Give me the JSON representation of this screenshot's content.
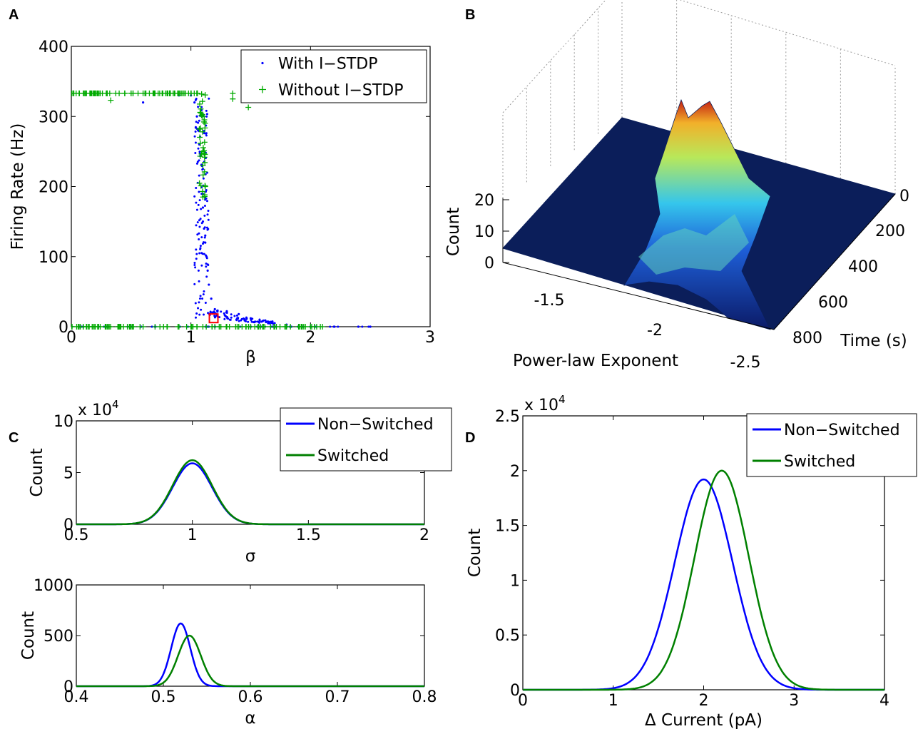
{
  "panels": {
    "A": "A",
    "B": "B",
    "C": "C",
    "D": "D"
  },
  "chart_data": [
    {
      "panel": "A",
      "type": "scatter",
      "xlabel": "β",
      "ylabel": "Firing Rate (Hz)",
      "xlim": [
        0,
        3
      ],
      "ylim": [
        0,
        400
      ],
      "xticks": [
        "0",
        "1",
        "2",
        "3"
      ],
      "yticks": [
        "0",
        "100",
        "200",
        "300",
        "400"
      ],
      "legend": {
        "position": "top-right",
        "entries": [
          "With I−STDP",
          "Without I−STDP"
        ]
      },
      "series": [
        {
          "name": "With I−STDP",
          "color": "#0000ff",
          "marker": "dot",
          "points": [
            [
              0.1,
              0
            ],
            [
              0.3,
              0
            ],
            [
              0.5,
              0
            ],
            [
              0.7,
              0
            ],
            [
              0.9,
              0
            ],
            [
              1.2,
              0
            ],
            [
              1.5,
              0
            ],
            [
              1.8,
              0
            ],
            [
              2.0,
              0
            ],
            [
              2.2,
              0
            ],
            [
              2.4,
              0
            ],
            [
              2.5,
              0
            ],
            [
              0.6,
              320
            ],
            [
              0.9,
              330
            ],
            [
              1.0,
              330
            ],
            [
              1.03,
              320
            ],
            [
              1.05,
              300
            ],
            [
              1.06,
              280
            ],
            [
              1.07,
              260
            ],
            [
              1.08,
              245
            ],
            [
              1.09,
              230
            ],
            [
              1.1,
              170
            ],
            [
              1.1,
              150
            ],
            [
              1.11,
              140
            ],
            [
              1.12,
              130
            ],
            [
              1.12,
              120
            ],
            [
              1.13,
              100
            ],
            [
              1.14,
              80
            ],
            [
              1.15,
              60
            ],
            [
              1.17,
              40
            ],
            [
              1.2,
              25
            ],
            [
              1.3,
              22
            ],
            [
              1.4,
              18
            ],
            [
              1.5,
              12
            ],
            [
              1.6,
              8
            ],
            [
              1.7,
              5
            ],
            [
              1.8,
              3
            ]
          ]
        },
        {
          "name": "Without I−STDP",
          "color": "#00aa00",
          "marker": "plus",
          "points": [
            [
              0.0,
              333
            ],
            [
              0.1,
              333
            ],
            [
              0.2,
              333
            ],
            [
              0.3,
              333
            ],
            [
              0.4,
              333
            ],
            [
              0.5,
              333
            ],
            [
              0.6,
              333
            ],
            [
              0.7,
              333
            ],
            [
              0.8,
              333
            ],
            [
              0.9,
              333
            ],
            [
              1.0,
              333
            ],
            [
              1.05,
              333
            ],
            [
              0.33,
              323
            ],
            [
              1.1,
              300
            ],
            [
              1.1,
              250
            ],
            [
              1.1,
              230
            ],
            [
              1.12,
              200
            ],
            [
              1.1,
              185
            ],
            [
              1.35,
              333
            ],
            [
              1.35,
              325
            ],
            [
              1.48,
              313
            ],
            [
              0.0,
              0
            ],
            [
              0.1,
              0
            ],
            [
              0.2,
              0
            ],
            [
              0.3,
              0
            ],
            [
              0.4,
              0
            ],
            [
              0.5,
              0
            ],
            [
              0.6,
              0
            ],
            [
              0.7,
              0
            ],
            [
              0.8,
              0
            ],
            [
              0.9,
              0
            ],
            [
              1.0,
              0
            ],
            [
              1.1,
              0
            ],
            [
              1.2,
              0
            ],
            [
              1.3,
              0
            ],
            [
              1.4,
              0
            ],
            [
              1.5,
              0
            ],
            [
              1.6,
              0
            ],
            [
              1.7,
              0
            ],
            [
              1.8,
              0
            ],
            [
              1.9,
              0
            ],
            [
              2.0,
              0
            ],
            [
              2.1,
              0
            ]
          ]
        }
      ],
      "annotation": "red-square-marker"
    },
    {
      "panel": "B",
      "type": "surface",
      "xlabel": "Power-law Exponent",
      "ylabel": "Time (s)",
      "zlabel": "Count",
      "xticks": [
        "-1.5",
        "-2",
        "-2.5"
      ],
      "yticks": [
        "0",
        "200",
        "400",
        "600",
        "800"
      ],
      "zticks": [
        "0",
        "10",
        "20"
      ],
      "peak": {
        "exponent": -1.9,
        "time": 0,
        "count": 25
      }
    },
    {
      "panel": "C-top",
      "type": "line",
      "xlabel": "σ",
      "ylabel": "Count",
      "multiplier": "x 10",
      "multiplier_exp": "4",
      "xlim": [
        0.5,
        2
      ],
      "ylim": [
        0,
        10
      ],
      "xticks": [
        "0.5",
        "1",
        "1.5",
        "2"
      ],
      "yticks": [
        "0",
        "5",
        "10"
      ],
      "legend": {
        "position": "top-right",
        "entries": [
          "Non−Switched",
          "Switched"
        ]
      },
      "series": [
        {
          "name": "Non−Switched",
          "color": "#0000ff",
          "mean": 1.0,
          "sd": 0.085,
          "peak": 5.9
        },
        {
          "name": "Switched",
          "color": "#008000",
          "mean": 1.0,
          "sd": 0.085,
          "peak": 6.2
        }
      ]
    },
    {
      "panel": "C-bottom",
      "type": "line",
      "xlabel": "α",
      "ylabel": "Count",
      "xlim": [
        0.4,
        0.8
      ],
      "ylim": [
        0,
        1000
      ],
      "xticks": [
        "0.4",
        "0.5",
        "0.6",
        "0.7",
        "0.8"
      ],
      "yticks": [
        "0",
        "500",
        "1000"
      ],
      "series": [
        {
          "name": "Non−Switched",
          "color": "#0000ff",
          "mean": 0.52,
          "sd": 0.011,
          "peak": 620
        },
        {
          "name": "Switched",
          "color": "#008000",
          "mean": 0.53,
          "sd": 0.013,
          "peak": 500
        }
      ]
    },
    {
      "panel": "D",
      "type": "line",
      "xlabel": "Δ Current (pA)",
      "ylabel": "Count",
      "multiplier": "x 10",
      "multiplier_exp": "4",
      "xlim": [
        0,
        4
      ],
      "ylim": [
        0,
        2.5
      ],
      "xticks": [
        "0",
        "1",
        "2",
        "3",
        "4"
      ],
      "yticks": [
        "0",
        "0.5",
        "1",
        "1.5",
        "2",
        "2.5"
      ],
      "legend": {
        "position": "top-right",
        "entries": [
          "Non−Switched",
          "Switched"
        ]
      },
      "series": [
        {
          "name": "Non−Switched",
          "color": "#0000ff",
          "mean": 2.0,
          "sd": 0.32,
          "peak": 1.92
        },
        {
          "name": "Switched",
          "color": "#008000",
          "mean": 2.2,
          "sd": 0.3,
          "peak": 2.0
        }
      ]
    }
  ]
}
